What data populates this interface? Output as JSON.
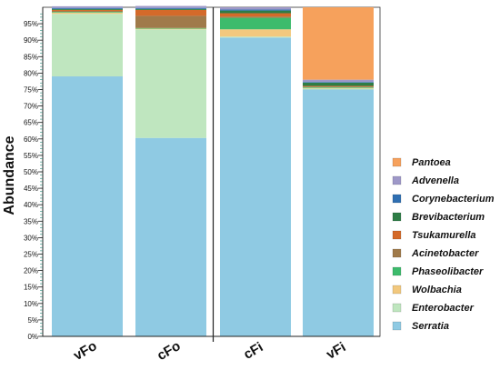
{
  "chart_data": {
    "type": "bar",
    "stacked": true,
    "percent": true,
    "ylabel": "Abundance",
    "xlabel": "",
    "ylim": [
      0,
      100
    ],
    "yticks": [
      0,
      5,
      10,
      15,
      20,
      25,
      30,
      35,
      40,
      45,
      50,
      55,
      60,
      65,
      70,
      75,
      80,
      85,
      90,
      95
    ],
    "ytick_suffix": "%",
    "categories": [
      "vFo",
      "cFo",
      "cFi",
      "vFi"
    ],
    "legend_position": "right",
    "series": [
      {
        "name": "Serratia",
        "color": "#8fcae3",
        "values": [
          79.0,
          60.3,
          90.8,
          75.0
        ]
      },
      {
        "name": "Enterobacter",
        "color": "#bfe6bf",
        "values": [
          19.0,
          33.0,
          0.3,
          0.3
        ]
      },
      {
        "name": "Wolbachia",
        "color": "#f2c87e",
        "values": [
          0.4,
          0.2,
          2.2,
          0.2
        ]
      },
      {
        "name": "Phaseolibacter",
        "color": "#3dbb6c",
        "values": [
          0.2,
          0.2,
          3.5,
          0.2
        ]
      },
      {
        "name": "Acinetobacter",
        "color": "#a07a4a",
        "values": [
          0.3,
          3.7,
          0.4,
          0.2
        ]
      },
      {
        "name": "Tsukamurella",
        "color": "#d46a2a",
        "values": [
          0.3,
          1.8,
          1.0,
          0.2
        ]
      },
      {
        "name": "Brevibacterium",
        "color": "#2e7d46",
        "values": [
          0.3,
          0.3,
          0.8,
          1.0
        ]
      },
      {
        "name": "Corynebacterium",
        "color": "#2f6fb2",
        "values": [
          0.3,
          0.3,
          0.3,
          0.2
        ]
      },
      {
        "name": "Advenella",
        "color": "#9e98c8",
        "values": [
          0.5,
          0.6,
          0.7,
          0.7
        ]
      },
      {
        "name": "Pantoea",
        "color": "#f6a15c",
        "values": [
          0.0,
          0.0,
          0.0,
          22.0
        ]
      }
    ],
    "legend_order": [
      "Pantoea",
      "Advenella",
      "Corynebacterium",
      "Brevibacterium",
      "Tsukamurella",
      "Acinetobacter",
      "Phaseolibacter",
      "Wolbachia",
      "Enterobacter",
      "Serratia"
    ]
  }
}
